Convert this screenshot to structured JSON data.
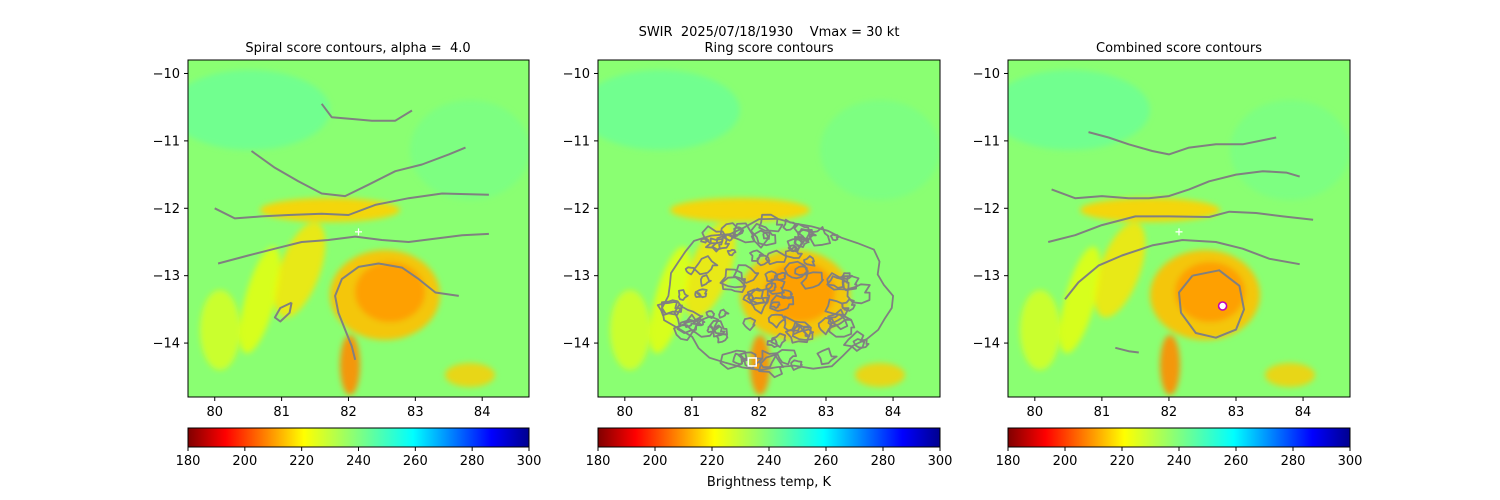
{
  "suptitle": "SWIR  2025/07/18/1930    Vmax = 30 kt",
  "colors": {
    "contour": "#808080",
    "center_cross": "#ffffff",
    "ring_marker": "#ffffff",
    "combined_marker": "#c000c0"
  },
  "colormap": {
    "name": "jet_r",
    "vmin": 180,
    "vmax": 300,
    "ticks": [
      180,
      200,
      220,
      240,
      260,
      280,
      300
    ]
  },
  "colorbar_label": "Brightness temp, K",
  "chart_data": [
    {
      "type": "heatmap",
      "title": "Spiral score contours, alpha =  4.0",
      "xlim": [
        79.6,
        84.7
      ],
      "ylim": [
        -14.8,
        -9.8
      ],
      "xticks": [
        80,
        81,
        82,
        83,
        84
      ],
      "yticks": [
        -10,
        -11,
        -12,
        -13,
        -14
      ],
      "center_marker": {
        "x": 82.15,
        "y": -12.35,
        "symbol": "+"
      },
      "contours": [
        [
          [
            81.6,
            -10.45
          ],
          [
            81.75,
            -10.65
          ],
          [
            82.1,
            -10.68
          ],
          [
            82.35,
            -10.7
          ],
          [
            82.7,
            -10.7
          ],
          [
            82.95,
            -10.55
          ]
        ],
        [
          [
            80.55,
            -11.15
          ],
          [
            80.9,
            -11.4
          ],
          [
            81.25,
            -11.6
          ],
          [
            81.6,
            -11.78
          ],
          [
            81.95,
            -11.82
          ],
          [
            82.3,
            -11.65
          ],
          [
            82.7,
            -11.45
          ],
          [
            83.1,
            -11.35
          ],
          [
            83.5,
            -11.2
          ],
          [
            83.75,
            -11.1
          ]
        ],
        [
          [
            80.0,
            -12.0
          ],
          [
            80.3,
            -12.15
          ],
          [
            80.7,
            -12.12
          ],
          [
            81.1,
            -12.1
          ],
          [
            81.6,
            -12.08
          ],
          [
            82.0,
            -12.1
          ],
          [
            82.4,
            -11.95
          ],
          [
            82.9,
            -11.85
          ],
          [
            83.4,
            -11.78
          ],
          [
            84.1,
            -11.8
          ]
        ],
        [
          [
            80.05,
            -12.82
          ],
          [
            80.5,
            -12.7
          ],
          [
            80.9,
            -12.6
          ],
          [
            81.3,
            -12.5
          ],
          [
            81.7,
            -12.47
          ],
          [
            82.1,
            -12.42
          ],
          [
            82.5,
            -12.47
          ],
          [
            82.9,
            -12.5
          ],
          [
            83.3,
            -12.45
          ],
          [
            83.7,
            -12.4
          ],
          [
            84.1,
            -12.38
          ]
        ],
        [
          [
            83.65,
            -13.3
          ],
          [
            83.3,
            -13.25
          ],
          [
            83.05,
            -13.05
          ],
          [
            82.8,
            -12.88
          ],
          [
            82.45,
            -12.82
          ],
          [
            82.15,
            -12.87
          ],
          [
            81.9,
            -13.05
          ],
          [
            81.8,
            -13.3
          ],
          [
            81.85,
            -13.55
          ],
          [
            81.95,
            -13.8
          ],
          [
            82.05,
            -14.05
          ],
          [
            82.1,
            -14.25
          ]
        ],
        [
          [
            81.15,
            -13.4
          ],
          [
            80.98,
            -13.48
          ],
          [
            80.9,
            -13.62
          ],
          [
            80.98,
            -13.68
          ],
          [
            81.12,
            -13.55
          ],
          [
            81.15,
            -13.4
          ]
        ]
      ]
    },
    {
      "type": "heatmap",
      "title": "Ring score contours",
      "xlim": [
        79.6,
        84.7
      ],
      "ylim": [
        -14.8,
        -9.8
      ],
      "xticks": [
        80,
        81,
        82,
        83,
        84
      ],
      "yticks": [
        -10,
        -11,
        -12,
        -13,
        -14
      ],
      "marker": {
        "x": 81.9,
        "y": -14.28,
        "symbol": "square"
      },
      "ring_region": {
        "x_range": [
          80.6,
          83.95
        ],
        "y_range": [
          -14.4,
          -12.2
        ]
      }
    },
    {
      "type": "heatmap",
      "title": "Combined score contours",
      "xlim": [
        79.6,
        84.7
      ],
      "ylim": [
        -14.8,
        -9.8
      ],
      "xticks": [
        80,
        81,
        82,
        83,
        84
      ],
      "yticks": [
        -10,
        -11,
        -12,
        -13,
        -14
      ],
      "center_marker": {
        "x": 82.15,
        "y": -12.35,
        "symbol": "+"
      },
      "marker": {
        "x": 82.8,
        "y": -13.45,
        "symbol": "circle"
      },
      "contours": [
        [
          [
            80.8,
            -10.87
          ],
          [
            81.1,
            -10.95
          ],
          [
            81.4,
            -11.05
          ],
          [
            81.75,
            -11.15
          ],
          [
            82.0,
            -11.2
          ],
          [
            82.3,
            -11.1
          ],
          [
            82.7,
            -11.05
          ],
          [
            83.1,
            -11.05
          ],
          [
            83.6,
            -10.95
          ]
        ],
        [
          [
            80.25,
            -11.72
          ],
          [
            80.6,
            -11.85
          ],
          [
            81.0,
            -11.82
          ],
          [
            81.4,
            -11.85
          ],
          [
            81.7,
            -11.85
          ],
          [
            82.0,
            -11.82
          ],
          [
            82.3,
            -11.72
          ],
          [
            82.6,
            -11.6
          ],
          [
            83.0,
            -11.5
          ],
          [
            83.4,
            -11.45
          ],
          [
            83.75,
            -11.47
          ],
          [
            83.95,
            -11.53
          ]
        ],
        [
          [
            80.2,
            -12.5
          ],
          [
            80.6,
            -12.4
          ],
          [
            81.0,
            -12.25
          ],
          [
            81.5,
            -12.12
          ],
          [
            82.0,
            -12.12
          ],
          [
            82.6,
            -12.13
          ],
          [
            82.9,
            -12.05
          ],
          [
            83.3,
            -12.07
          ],
          [
            83.7,
            -12.12
          ],
          [
            84.15,
            -12.17
          ]
        ],
        [
          [
            80.45,
            -13.35
          ],
          [
            80.65,
            -13.1
          ],
          [
            80.95,
            -12.85
          ],
          [
            81.3,
            -12.7
          ],
          [
            81.75,
            -12.55
          ],
          [
            82.2,
            -12.47
          ],
          [
            82.7,
            -12.5
          ],
          [
            83.1,
            -12.6
          ],
          [
            83.5,
            -12.75
          ],
          [
            83.95,
            -12.83
          ]
        ],
        [
          [
            82.35,
            -13.0
          ],
          [
            82.75,
            -12.92
          ],
          [
            83.05,
            -13.15
          ],
          [
            83.12,
            -13.5
          ],
          [
            83.0,
            -13.8
          ],
          [
            82.7,
            -13.92
          ],
          [
            82.4,
            -13.85
          ],
          [
            82.18,
            -13.55
          ],
          [
            82.15,
            -13.25
          ],
          [
            82.35,
            -13.0
          ]
        ],
        [
          [
            81.2,
            -14.07
          ],
          [
            81.4,
            -14.12
          ],
          [
            81.55,
            -14.14
          ]
        ]
      ]
    }
  ]
}
